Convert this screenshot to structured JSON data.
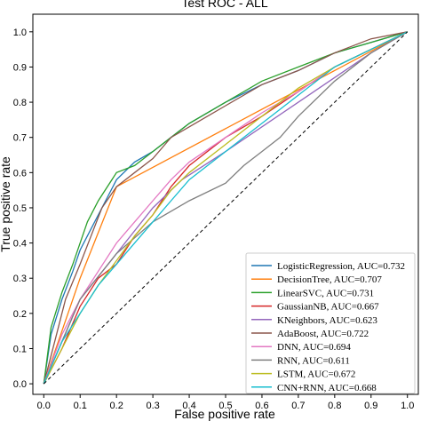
{
  "chart_data": {
    "type": "line",
    "title": "Test ROC - ALL",
    "xlabel": "False positive rate",
    "ylabel": "True positive rate",
    "xlim": [
      -0.03,
      1.03
    ],
    "ylim": [
      -0.03,
      1.05
    ],
    "xticks": [
      "0.0",
      "0.1",
      "0.2",
      "0.3",
      "0.4",
      "0.5",
      "0.6",
      "0.7",
      "0.8",
      "0.9",
      "1.0"
    ],
    "yticks": [
      "0.0",
      "0.1",
      "0.2",
      "0.3",
      "0.4",
      "0.5",
      "0.6",
      "0.7",
      "0.8",
      "0.9",
      "1.0"
    ],
    "grid": false,
    "legend_position": "bottom-right",
    "diagonal": {
      "x": [
        0,
        1
      ],
      "y": [
        0,
        1
      ],
      "color": "#000000",
      "style": "dashed"
    },
    "series": [
      {
        "name": "LogisticRegression, AUC=0.732",
        "color": "#1f77b4",
        "x": [
          0,
          0.02,
          0.05,
          0.08,
          0.1,
          0.13,
          0.16,
          0.2,
          0.25,
          0.3,
          0.35,
          0.4,
          0.5,
          0.6,
          0.7,
          0.8,
          0.9,
          1
        ],
        "y": [
          0,
          0.14,
          0.24,
          0.32,
          0.38,
          0.44,
          0.5,
          0.58,
          0.63,
          0.66,
          0.7,
          0.74,
          0.8,
          0.85,
          0.89,
          0.94,
          0.97,
          1
        ]
      },
      {
        "name": "DecisionTree, AUC=0.707",
        "color": "#ff7f0e",
        "x": [
          0,
          0.1,
          0.2,
          1
        ],
        "y": [
          0,
          0.3,
          0.56,
          1
        ]
      },
      {
        "name": "LinearSVC, AUC=0.731",
        "color": "#2ca02c",
        "x": [
          0,
          0.02,
          0.05,
          0.08,
          0.1,
          0.12,
          0.15,
          0.2,
          0.25,
          0.3,
          0.35,
          0.4,
          0.5,
          0.6,
          0.7,
          0.8,
          0.9,
          1
        ],
        "y": [
          0,
          0.16,
          0.26,
          0.34,
          0.4,
          0.46,
          0.52,
          0.6,
          0.62,
          0.66,
          0.7,
          0.74,
          0.8,
          0.86,
          0.9,
          0.94,
          0.97,
          1
        ]
      },
      {
        "name": "GaussianNB, AUC=0.667",
        "color": "#d62728",
        "x": [
          0,
          0.05,
          0.1,
          0.15,
          0.2,
          0.25,
          0.3,
          0.35,
          0.4,
          0.5,
          0.6,
          0.7,
          0.8,
          0.9,
          1
        ],
        "y": [
          0,
          0.1,
          0.22,
          0.3,
          0.34,
          0.42,
          0.48,
          0.56,
          0.62,
          0.7,
          0.76,
          0.83,
          0.9,
          0.95,
          1
        ]
      },
      {
        "name": "KNeighbors, AUC=0.623",
        "color": "#9467bd",
        "x": [
          0,
          0.1,
          0.2,
          0.3,
          0.38,
          0.5,
          0.6,
          0.7,
          0.8,
          0.9,
          1
        ],
        "y": [
          0,
          0.24,
          0.37,
          0.5,
          0.58,
          0.66,
          0.73,
          0.8,
          0.87,
          0.94,
          1
        ]
      },
      {
        "name": "AdaBoost, AUC=0.722",
        "color": "#8c564b",
        "x": [
          0,
          0.03,
          0.06,
          0.1,
          0.13,
          0.16,
          0.2,
          0.25,
          0.3,
          0.35,
          0.4,
          0.5,
          0.6,
          0.7,
          0.8,
          0.9,
          1
        ],
        "y": [
          0,
          0.12,
          0.24,
          0.34,
          0.42,
          0.5,
          0.56,
          0.6,
          0.64,
          0.7,
          0.73,
          0.79,
          0.85,
          0.89,
          0.94,
          0.98,
          1
        ]
      },
      {
        "name": "DNN, AUC=0.694",
        "color": "#e377c2",
        "x": [
          0,
          0.05,
          0.1,
          0.15,
          0.2,
          0.25,
          0.3,
          0.35,
          0.4,
          0.5,
          0.6,
          0.7,
          0.8,
          0.9,
          1
        ],
        "y": [
          0,
          0.14,
          0.24,
          0.32,
          0.4,
          0.46,
          0.52,
          0.58,
          0.63,
          0.7,
          0.77,
          0.83,
          0.9,
          0.95,
          1
        ]
      },
      {
        "name": "RNN, AUC=0.611",
        "color": "#7f7f7f",
        "x": [
          0,
          0.1,
          0.2,
          0.3,
          0.4,
          0.5,
          0.55,
          0.6,
          0.65,
          0.7,
          0.8,
          0.9,
          1
        ],
        "y": [
          0,
          0.24,
          0.37,
          0.46,
          0.52,
          0.57,
          0.62,
          0.66,
          0.7,
          0.76,
          0.86,
          0.94,
          1
        ]
      },
      {
        "name": "LSTM, AUC=0.672",
        "color": "#bcbd22",
        "x": [
          0,
          0.05,
          0.1,
          0.15,
          0.2,
          0.25,
          0.3,
          0.35,
          0.4,
          0.5,
          0.6,
          0.7,
          0.8,
          0.9,
          1
        ],
        "y": [
          0,
          0.1,
          0.2,
          0.28,
          0.35,
          0.42,
          0.48,
          0.55,
          0.6,
          0.68,
          0.76,
          0.84,
          0.9,
          0.95,
          1
        ]
      },
      {
        "name": "CNN+RNN, AUC=0.668",
        "color": "#17becf",
        "x": [
          0,
          0.05,
          0.1,
          0.15,
          0.2,
          0.25,
          0.3,
          0.35,
          0.4,
          0.5,
          0.6,
          0.7,
          0.8,
          0.9,
          1
        ],
        "y": [
          0,
          0.12,
          0.2,
          0.28,
          0.34,
          0.4,
          0.46,
          0.52,
          0.58,
          0.66,
          0.74,
          0.82,
          0.9,
          0.95,
          1
        ]
      }
    ]
  }
}
